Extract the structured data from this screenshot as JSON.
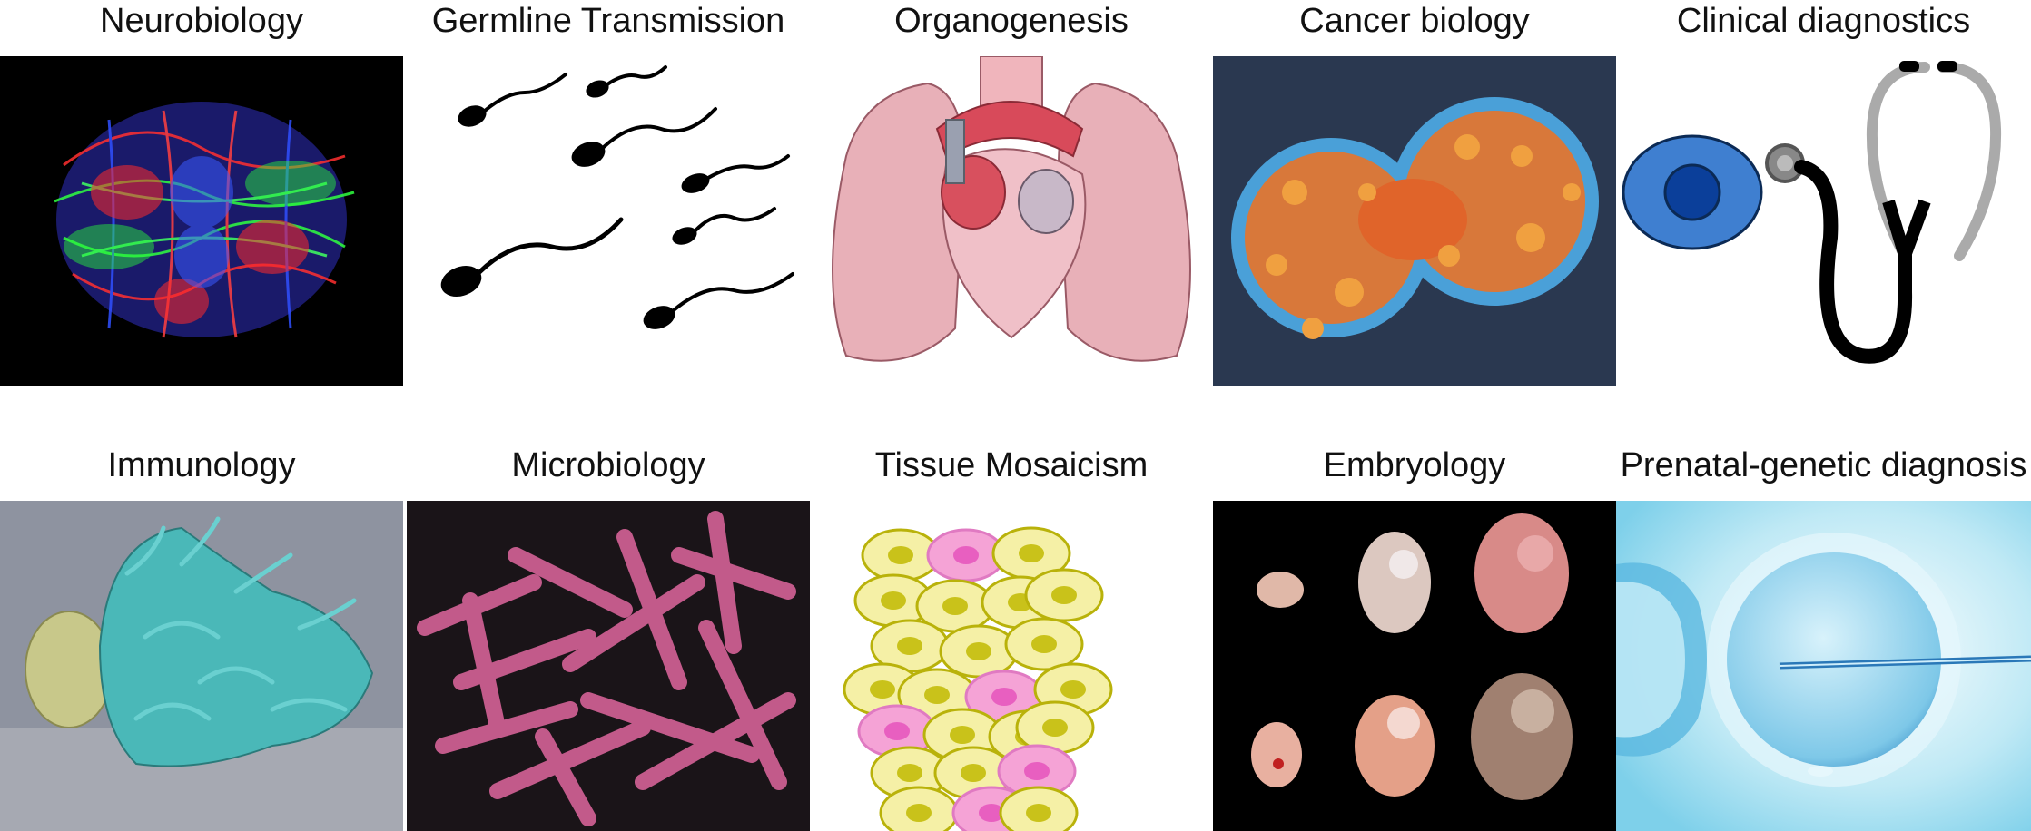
{
  "panels": [
    {
      "caption": "Neurobiology",
      "icon": "brain-tractography-icon"
    },
    {
      "caption": "Germline Transmission",
      "icon": "sperm-cells-icon"
    },
    {
      "caption": "Organogenesis",
      "icon": "heart-lungs-icon"
    },
    {
      "caption": "Cancer biology",
      "icon": "dividing-cancer-cell-icon"
    },
    {
      "caption": "Clinical diagnostics",
      "icon": "stethoscope-icon"
    },
    {
      "caption": "Immunology",
      "icon": "immune-cell-icon"
    },
    {
      "caption": "Microbiology",
      "icon": "rod-bacteria-icon"
    },
    {
      "caption": "Tissue Mosaicism",
      "icon": "mosaic-cells-icon"
    },
    {
      "caption": "Embryology",
      "icon": "embryo-stages-icon"
    },
    {
      "caption": "Prenatal-genetic diagnosis",
      "icon": "oocyte-injection-icon"
    }
  ],
  "colors": {
    "mosaic_yellow": "#f5f0a6",
    "mosaic_nucleus_yellow": "#c9c21a",
    "mosaic_pink": "#f5a3d6",
    "mosaic_nucleus_pink": "#e85fc0",
    "cell_blue": "#3f7fd0",
    "cell_nucleus_blue": "#0b3f9a"
  }
}
